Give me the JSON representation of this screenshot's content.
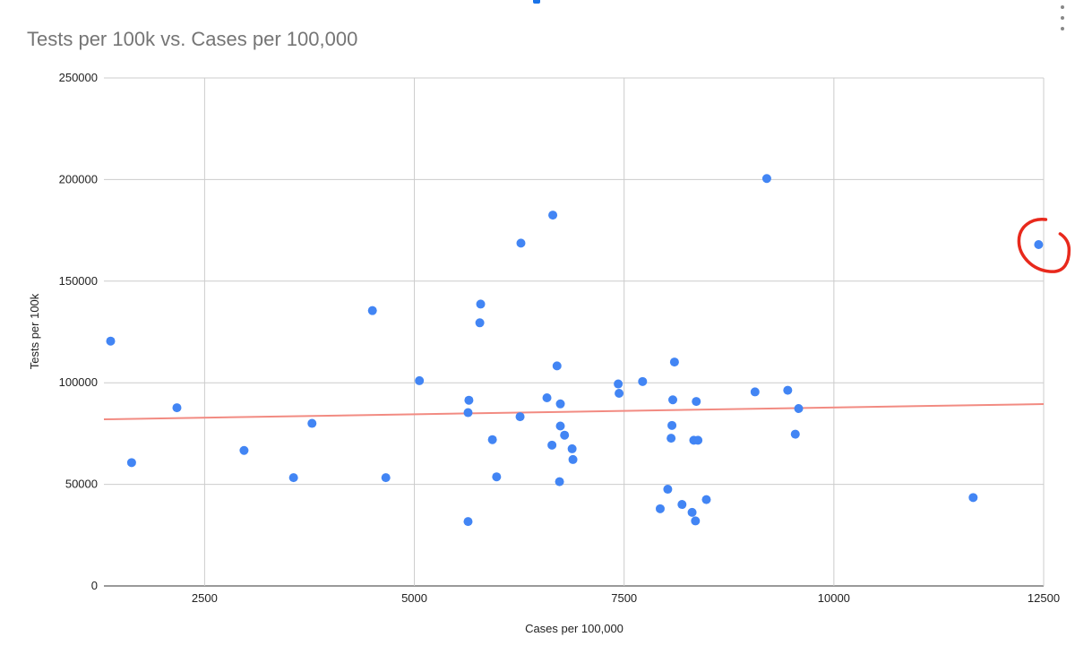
{
  "header": {
    "title": "Tests per 100k vs. Cases per 100,000"
  },
  "chart_data": {
    "type": "scatter",
    "title": "Tests per 100k vs. Cases per 100,000",
    "xlabel": "Cases per 100,000",
    "ylabel": "Tests per 100k",
    "xlim": [
      1300,
      12500
    ],
    "ylim": [
      0,
      250000
    ],
    "xticks": [
      2500,
      5000,
      7500,
      10000,
      12500
    ],
    "yticks": [
      0,
      50000,
      100000,
      150000,
      200000,
      250000
    ],
    "xtick_labels": [
      "2500",
      "5000",
      "7500",
      "10000",
      "12500"
    ],
    "ytick_labels": [
      "0",
      "50000",
      "100000",
      "150000",
      "200000",
      "250000"
    ],
    "grid": true,
    "colors": {
      "points": "#4285f4",
      "trendline": "#f28b82",
      "annotation": "#e8291c",
      "grid": "#cccccc",
      "title": "#757575"
    },
    "trendline": {
      "x": [
        1300,
        12500
      ],
      "y": [
        82000,
        89500
      ]
    },
    "annotation": {
      "shape": "circle-mark",
      "target_point": [
        12440,
        168000
      ]
    },
    "points": [
      [
        1380,
        120500
      ],
      [
        1630,
        60700
      ],
      [
        2170,
        87700
      ],
      [
        2970,
        66700
      ],
      [
        3560,
        53300
      ],
      [
        3780,
        80000
      ],
      [
        4500,
        135500
      ],
      [
        4660,
        53300
      ],
      [
        5060,
        101000
      ],
      [
        5640,
        31700
      ],
      [
        5640,
        85300
      ],
      [
        5650,
        91400
      ],
      [
        5780,
        129500
      ],
      [
        5790,
        138700
      ],
      [
        5930,
        72000
      ],
      [
        5980,
        53700
      ],
      [
        6260,
        83300
      ],
      [
        6270,
        168700
      ],
      [
        6580,
        92600
      ],
      [
        6640,
        69300
      ],
      [
        6650,
        182500
      ],
      [
        6700,
        108300
      ],
      [
        6730,
        51300
      ],
      [
        6740,
        78700
      ],
      [
        6740,
        89600
      ],
      [
        6790,
        74200
      ],
      [
        6880,
        67500
      ],
      [
        6890,
        62200
      ],
      [
        7430,
        99400
      ],
      [
        7440,
        94800
      ],
      [
        7720,
        100600
      ],
      [
        7930,
        38000
      ],
      [
        8020,
        47600
      ],
      [
        8060,
        72700
      ],
      [
        8070,
        79000
      ],
      [
        8080,
        91600
      ],
      [
        8100,
        110200
      ],
      [
        8190,
        40100
      ],
      [
        8310,
        36200
      ],
      [
        8330,
        71700
      ],
      [
        8350,
        32000
      ],
      [
        8360,
        90800
      ],
      [
        8380,
        71700
      ],
      [
        8480,
        42500
      ],
      [
        9060,
        95500
      ],
      [
        9200,
        200500
      ],
      [
        9450,
        96300
      ],
      [
        9540,
        74700
      ],
      [
        9580,
        87300
      ],
      [
        11660,
        43500
      ],
      [
        12440,
        168000
      ]
    ]
  }
}
